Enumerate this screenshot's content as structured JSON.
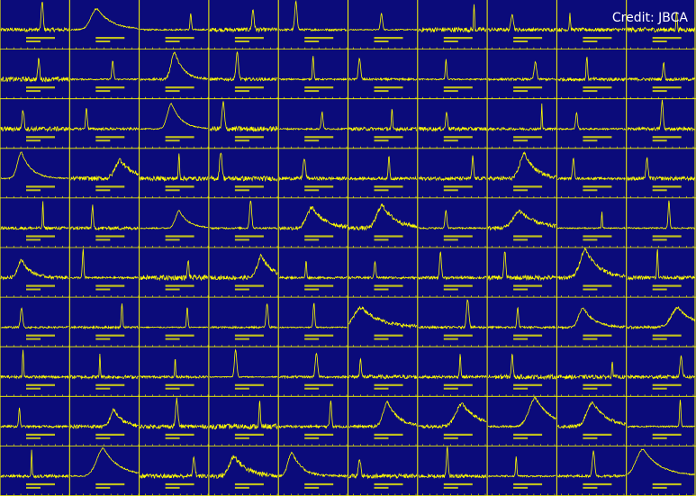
{
  "credit": "Credit: JBCA"
}
